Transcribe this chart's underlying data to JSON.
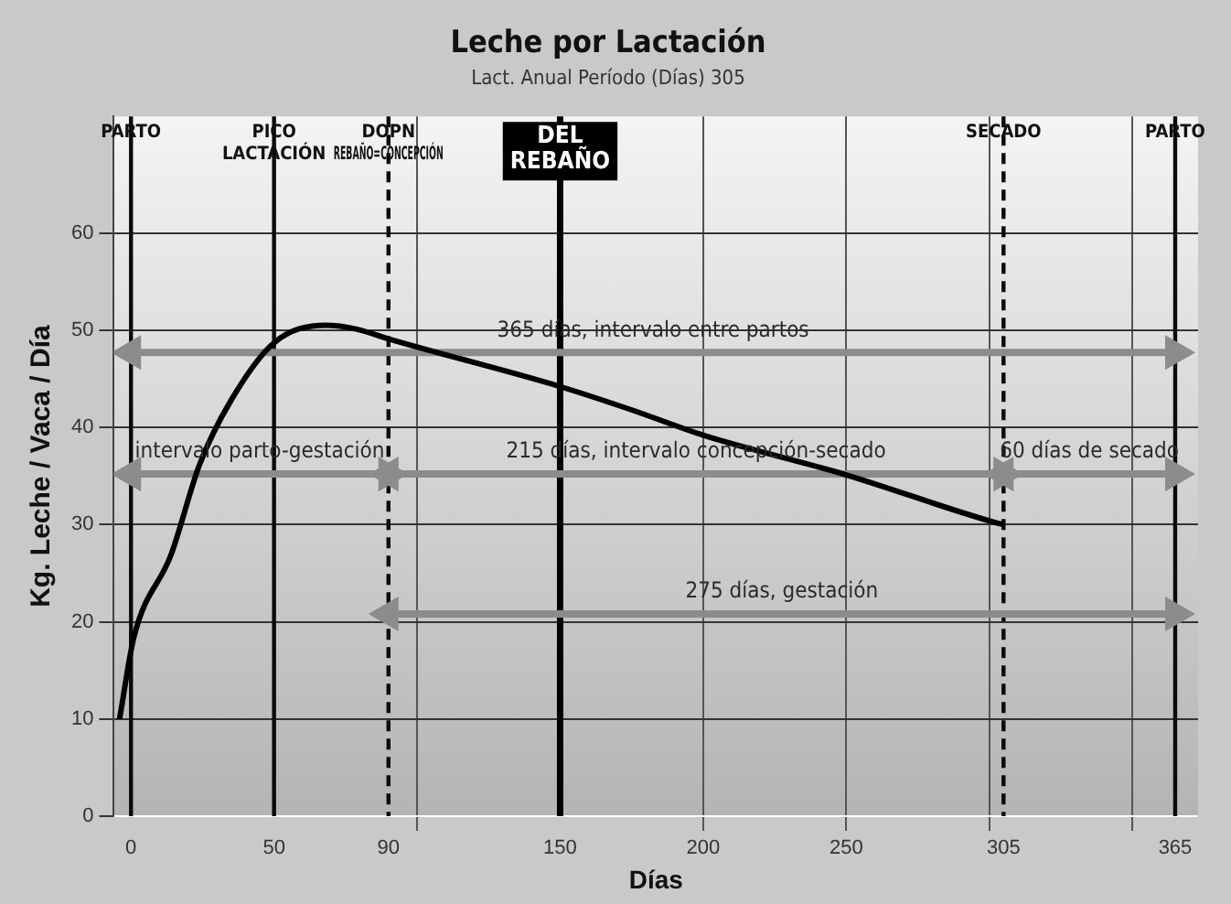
{
  "chart_data": {
    "type": "line",
    "title": "Leche por Lactación",
    "subtitle": "Lact. Anual Período (Días) 305",
    "xlabel": "Días",
    "ylabel": "Kg. Leche / Vaca / Día",
    "xlim": [
      -6,
      373
    ],
    "ylim": [
      0,
      72
    ],
    "xticks": [
      0,
      50,
      90,
      {
        "value": 100,
        "label": null
      },
      150,
      200,
      250,
      {
        "value": 300,
        "label": null
      },
      305,
      {
        "value": 350,
        "label": null
      },
      365
    ],
    "yticks": [
      0,
      10,
      20,
      30,
      40,
      50,
      60
    ],
    "grid": true,
    "legend": false,
    "line_style": "solid",
    "series": [
      {
        "color": "#000000",
        "marker": "none",
        "x": [
          -4,
          1,
          14,
          24,
          35,
          50,
          68,
          79,
          90,
          150,
          175,
          200,
          249,
          301,
          305
        ],
        "values": [
          10,
          18.4,
          26.9,
          36.2,
          42.8,
          48.7,
          50.5,
          50.1,
          49.1,
          44.2,
          41.8,
          39.2,
          35.2,
          30.3,
          30
        ]
      },
      {
        "name": "365 días, intervalo entre partos",
        "color": "#8c8c8c",
        "marker": "triangle",
        "x": [
          0,
          365
        ],
        "values": [
          47.7,
          47.7
        ]
      },
      {
        "name": "intervalo parto-gestación",
        "color": "#8c8c8c",
        "marker": "triangle",
        "x": [
          0,
          90
        ],
        "values": [
          35.2,
          35.2
        ]
      },
      {
        "name": "215 días, intervalo concepción-secado",
        "color": "#8c8c8c",
        "marker": "triangle",
        "x": [
          90,
          305
        ],
        "values": [
          35.2,
          35.2
        ]
      },
      {
        "name": "60 días de secado",
        "color": "#8c8c8c",
        "marker": "triangle",
        "x": [
          305,
          365
        ],
        "values": [
          35.2,
          35.2
        ]
      },
      {
        "name": "275 días, gestación",
        "color": "#8c8c8c",
        "marker": "triangle",
        "x": [
          90,
          365
        ],
        "values": [
          20.8,
          20.8
        ]
      }
    ],
    "ref_lines": [
      {
        "axis": "x",
        "value": 0,
        "label": "PARTO"
      },
      {
        "axis": "x",
        "value": 50,
        "label": "PICO\nLACTACIÓN"
      },
      {
        "axis": "x",
        "value": 90,
        "label": "DOPN\nREBAÑO=CONCEPCIÓN",
        "line_style": "dashed"
      },
      {
        "axis": "x",
        "value": 150,
        "label": "DEL\nREBAÑO",
        "color": "#000000"
      },
      {
        "axis": "x",
        "value": 305,
        "label": "SECADO",
        "line_style": "dashed"
      },
      {
        "axis": "x",
        "value": 365,
        "label": "PARTO"
      }
    ]
  }
}
